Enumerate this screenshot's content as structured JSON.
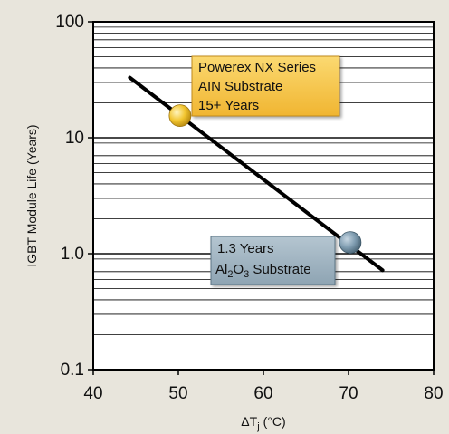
{
  "chart_data": {
    "type": "line",
    "x_scale": "linear",
    "y_scale": "log",
    "xlim": [
      40,
      80
    ],
    "ylim": [
      0.1,
      100
    ],
    "x_ticks": [
      "40",
      "50",
      "60",
      "70",
      "80"
    ],
    "y_ticks": [
      "0.1",
      "1.0",
      "10",
      "100"
    ],
    "xlabel_main": "ΔT",
    "xlabel_sub": "j",
    "xlabel_unit": "(°C)",
    "ylabel": "IGBT Module Life (Years)",
    "grid": "horizontal minor log grid",
    "series": [
      {
        "x": [
          44.3,
          74
        ],
        "y": [
          33,
          0.72
        ],
        "color": "#000000"
      }
    ],
    "markers": [
      {
        "x": 50.2,
        "y": 15.5,
        "color": "#f2c530"
      },
      {
        "x": 70.2,
        "y": 1.25,
        "color": "#7f9cb0"
      }
    ],
    "annotations": [
      {
        "lines": [
          "Powerex NX Series",
          "AIN Substrate",
          "15+ Years"
        ],
        "color": "#f7c84a"
      },
      {
        "line1": "1.3 Years",
        "line2_parts": [
          "Al",
          "2",
          "O",
          "3",
          " Substrate"
        ],
        "color": "#9fb3c0"
      }
    ]
  }
}
